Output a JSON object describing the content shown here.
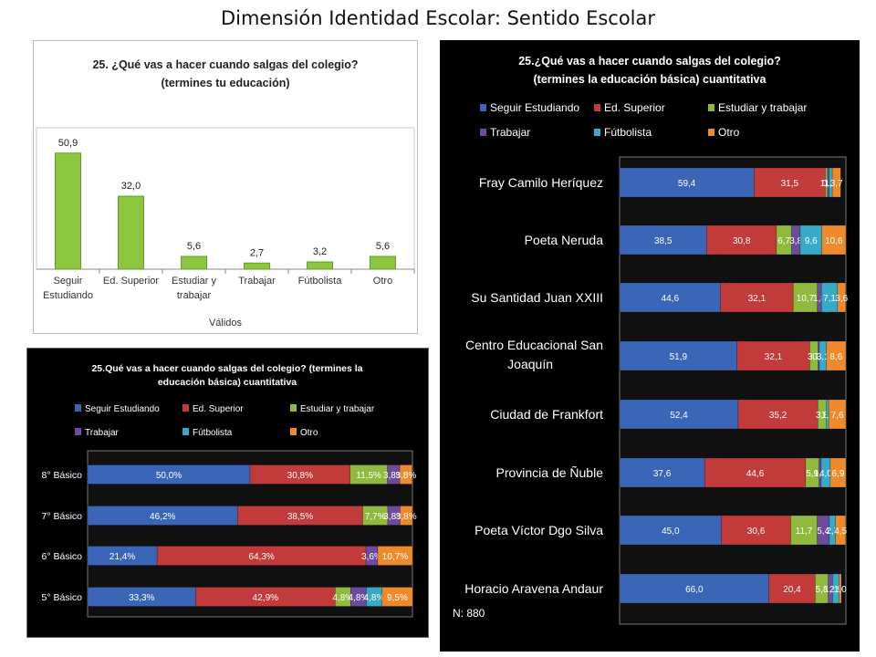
{
  "page_title": "Dimensión Identidad Escolar: Sentido Escolar",
  "colors": {
    "seguir": "#3b66b8",
    "superior": "#c23b3a",
    "estudiar_trabajar": "#8fba3e",
    "trabajar": "#6d4b9e",
    "futbolista": "#37aac8",
    "otro": "#ee8a2c",
    "bar_green": "#8cc63f"
  },
  "chart_data": [
    {
      "type": "bar",
      "title": "25. ¿Qué vas a hacer cuando salgas del colegio?",
      "subtitle": "(termines tu educación)",
      "categories": [
        "Seguir Estudiando",
        "Ed. Superior",
        "Estudiar y trabajar",
        "Trabajar",
        "Fútbolista",
        "Otro"
      ],
      "values": [
        50.9,
        32.0,
        5.6,
        2.7,
        3.2,
        5.6
      ],
      "value_labels": [
        "50,9",
        "32,0",
        "5,6",
        "2,7",
        "3,2",
        "5,6"
      ],
      "xlabel": "Válidos",
      "ylabel": "",
      "ylim": [
        0,
        60
      ],
      "grid": false
    },
    {
      "type": "bar",
      "orientation": "horizontal-stacked-100",
      "title": "25.Qué vas a hacer cuando salgas del colegio? (termines la educación básica) cuantitativa",
      "legend": [
        "Seguir Estudiando",
        "Ed. Superior",
        "Estudiar y trabajar",
        "Trabajar",
        "Fútbolista",
        "Otro"
      ],
      "legend_position": "top",
      "categories": [
        "8° Básico",
        "7° Básico",
        "6° Básico",
        "5° Básico"
      ],
      "series": [
        {
          "name": "Seguir Estudiando",
          "values": [
            50.0,
            46.2,
            21.4,
            33.3
          ],
          "labels": [
            "50,0%",
            "46,2%",
            "21,4%",
            "33,3%"
          ]
        },
        {
          "name": "Ed. Superior",
          "values": [
            30.8,
            38.5,
            64.3,
            42.9
          ],
          "labels": [
            "30,8%",
            "38,5%",
            "64,3%",
            "42,9%"
          ]
        },
        {
          "name": "Estudiar y trabajar",
          "values": [
            11.5,
            7.7,
            0,
            4.8
          ],
          "labels": [
            "11,5%",
            "7,7%",
            "",
            "4,8%"
          ]
        },
        {
          "name": "Trabajar",
          "values": [
            3.8,
            3.8,
            3.6,
            4.8
          ],
          "labels": [
            "3,8%",
            "3,8%",
            "3,6%",
            "4,8%"
          ]
        },
        {
          "name": "Fútbolista",
          "values": [
            0,
            0,
            0,
            4.8
          ],
          "labels": [
            "",
            "",
            "",
            "4,8%"
          ]
        },
        {
          "name": "Otro",
          "values": [
            3.8,
            3.8,
            10.7,
            9.5
          ],
          "labels": [
            "3,8%",
            "3,8%",
            "10,7%",
            "9,5%"
          ]
        }
      ]
    },
    {
      "type": "bar",
      "orientation": "horizontal-stacked-100",
      "title": "25.¿Qué vas a hacer cuando salgas del colegio?",
      "subtitle": "(termines la educación básica) cuantitativa",
      "legend": [
        "Seguir Estudiando",
        "Ed. Superior",
        "Estudiar y trabajar",
        "Trabajar",
        "Fútbolista",
        "Otro"
      ],
      "legend_position": "top",
      "categories": [
        "Fray Camilo Heríquez",
        "Poeta Neruda",
        "Su Santidad Juan XXIII",
        "Centro Educacional San Joaquín",
        "Ciudad de Frankfort",
        "Provincia de Ñuble",
        "Poeta Víctor Dgo Silva",
        "Horacio Aravena Andaur"
      ],
      "series": [
        {
          "name": "Seguir Estudiando",
          "values": [
            59.4,
            38.5,
            44.6,
            51.9,
            52.4,
            37.6,
            45.0,
            66.0
          ],
          "labels": [
            "59,4",
            "38,5",
            "44,6",
            "51,9",
            "52,4",
            "37,6",
            "45,0",
            "66,0"
          ]
        },
        {
          "name": "Ed. Superior",
          "values": [
            31.5,
            30.8,
            32.1,
            32.1,
            35.2,
            44.6,
            30.6,
            20.4
          ],
          "labels": [
            "31,5",
            "30,8",
            "32,1",
            "32,1",
            "35,2",
            "44,6",
            "30,6",
            "20,4"
          ]
        },
        {
          "name": "Estudiar y trabajar",
          "values": [
            1.0,
            6.7,
            10.7,
            3.7,
            3.8,
            5.9,
            11.7,
            5.8
          ],
          "labels": [
            "1,0",
            "6,7",
            "10,7",
            "3,7",
            "3,8",
            "5,9",
            "11,7",
            "5,8"
          ]
        },
        {
          "name": "Trabajar",
          "values": [
            0.7,
            3.8,
            1.8,
            0.6,
            0,
            1.0,
            5.4,
            1.9
          ],
          "labels": [
            "0,7",
            "3,8",
            "1,8",
            "0,6",
            "",
            "1,0",
            "5,4",
            "1,9"
          ]
        },
        {
          "name": "Fútbolista",
          "values": [
            1.4,
            9.6,
            7.1,
            3.1,
            1.0,
            4.0,
            2.7,
            2.9
          ],
          "labels": [
            "1,4",
            "9,6",
            "7,1",
            "3,1",
            "1,0",
            "4,0",
            "2,7",
            "2,9"
          ]
        },
        {
          "name": "Otro",
          "values": [
            3.7,
            10.6,
            3.6,
            8.6,
            7.6,
            6.9,
            4.5,
            1.0
          ],
          "labels": [
            "3,7",
            "10,6",
            "3,6",
            "8,6",
            "7,6",
            "6,9",
            "4,5",
            "1,0"
          ]
        }
      ],
      "annotation": "N: 880"
    }
  ]
}
